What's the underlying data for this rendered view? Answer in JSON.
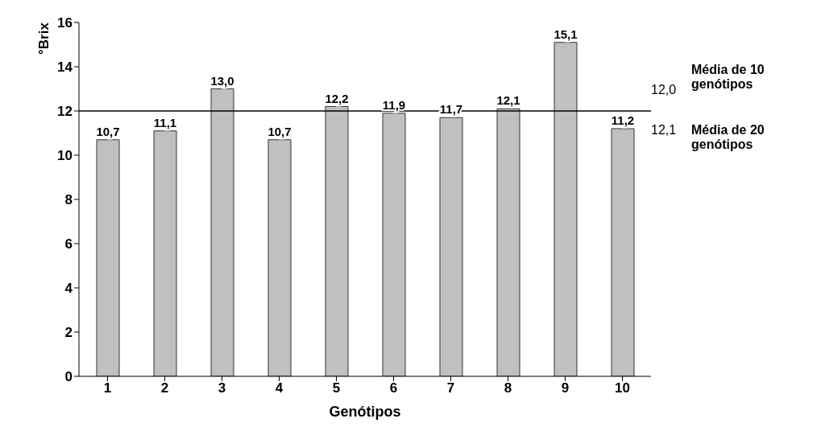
{
  "chart_data": {
    "type": "bar",
    "xlabel": "Genótipos",
    "ylabel": "°Brix",
    "categories": [
      "1",
      "2",
      "3",
      "4",
      "5",
      "6",
      "7",
      "8",
      "9",
      "10"
    ],
    "values": [
      10.7,
      11.1,
      13.0,
      10.7,
      12.2,
      11.9,
      11.7,
      12.1,
      15.1,
      11.2
    ],
    "value_labels": [
      "10,7",
      "11,1",
      "13,0",
      "10,7",
      "12,2",
      "11,9",
      "11,7",
      "12,1",
      "15,1",
      "11,2"
    ],
    "color": "#c0c0c0",
    "ylim": [
      0,
      16
    ],
    "yticks": [
      0,
      2,
      4,
      6,
      8,
      10,
      12,
      14,
      16
    ],
    "ref_lines": [
      {
        "axis": "y",
        "value": 12,
        "color": "#000000"
      }
    ],
    "annotations": [
      "Média de 10 genótipos",
      "12,0",
      "12,1",
      "Média de 20 genótipos"
    ],
    "grid": false,
    "legend": false
  }
}
